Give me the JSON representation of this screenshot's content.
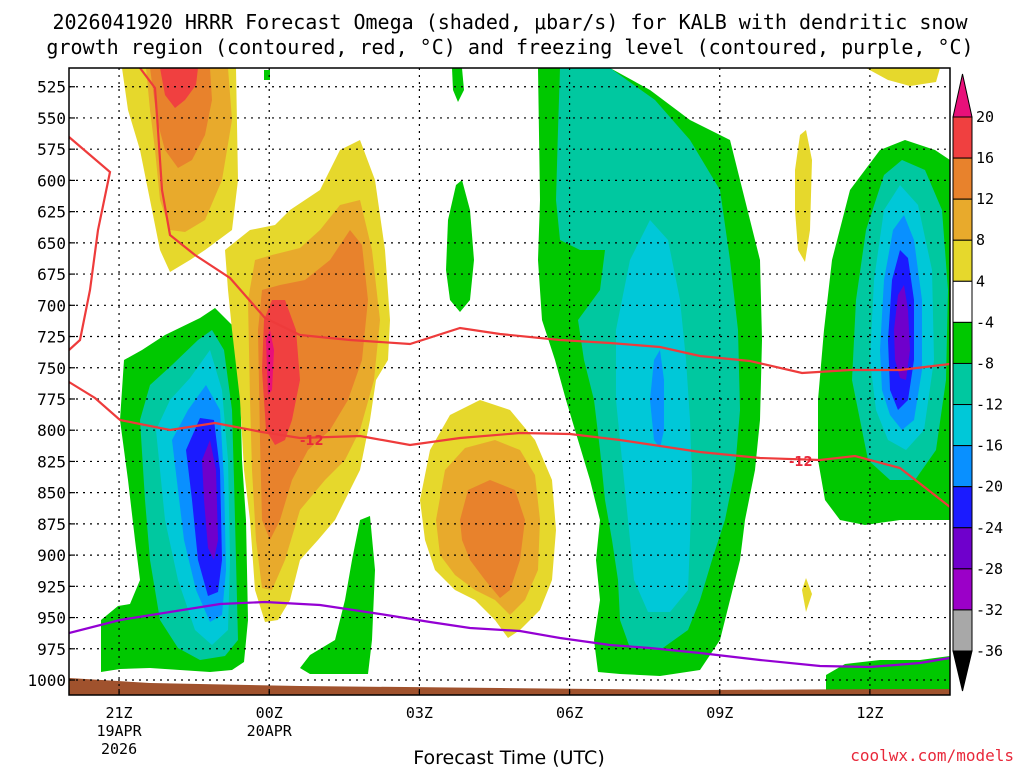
{
  "chart_data": {
    "type": "time-height",
    "title_line1": "2026041920 HRRR Forecast Omega (shaded, μbar/s) for KALB with dendritic snow",
    "title_line2": "growth region (contoured, red, °C) and freezing level (contoured, purple, °C)",
    "xlabel": "Forecast Time (UTC)",
    "credit": "coolwx.com/models",
    "x_range_hours": [
      -1.0,
      16.6
    ],
    "y_range_mb": [
      510,
      1012
    ],
    "y_ticks": [
      525,
      550,
      575,
      600,
      625,
      650,
      675,
      700,
      725,
      750,
      775,
      800,
      825,
      850,
      875,
      900,
      925,
      950,
      975,
      1000
    ],
    "x_ticks": [
      {
        "hour": 0,
        "lines": [
          "21Z",
          "19APR",
          "2026"
        ]
      },
      {
        "hour": 3,
        "lines": [
          "00Z",
          "20APR"
        ]
      },
      {
        "hour": 6,
        "lines": [
          "03Z"
        ]
      },
      {
        "hour": 9,
        "lines": [
          "06Z"
        ]
      },
      {
        "hour": 12,
        "lines": [
          "09Z"
        ]
      },
      {
        "hour": 15,
        "lines": [
          "12Z"
        ]
      }
    ],
    "colorbar": {
      "levels": [
        -36,
        -32,
        -28,
        -24,
        -20,
        -16,
        -12,
        -8,
        -4,
        4,
        8,
        12,
        16,
        20
      ],
      "colors": [
        "#000000",
        "#a8a8a8",
        "#9b00c8",
        "#6f00cc",
        "#1b1bff",
        "#0990ff",
        "#00c8d8",
        "#00c8a0",
        "#00c800",
        "#ffffff",
        "#e6d82c",
        "#e8aa2c",
        "#e8822c",
        "#f04040",
        "#e8107a"
      ]
    },
    "omega_regions": [
      {
        "label": "upward motion 21Z-00Z",
        "min_value": -24,
        "x": 1.9,
        "y_mb": 790
      },
      {
        "label": "upward motion 06Z-10Z",
        "min_value": -16,
        "x": 11.0,
        "y_mb": 720
      },
      {
        "label": "upward motion 12Z-13Z",
        "min_value": -28,
        "x": 16.0,
        "y_mb": 680
      },
      {
        "label": "downward motion 22Z",
        "max_value": 16,
        "x": 1.0,
        "y_mb": 525
      },
      {
        "label": "downward motion 00Z",
        "max_value": 16,
        "x": 3.0,
        "y_mb": 710
      },
      {
        "label": "downward motion 05Z",
        "max_value": 12,
        "x": 8.0,
        "y_mb": 840
      }
    ],
    "dgz_isotherm_label": "-12",
    "freezing_level_units": "°C"
  }
}
